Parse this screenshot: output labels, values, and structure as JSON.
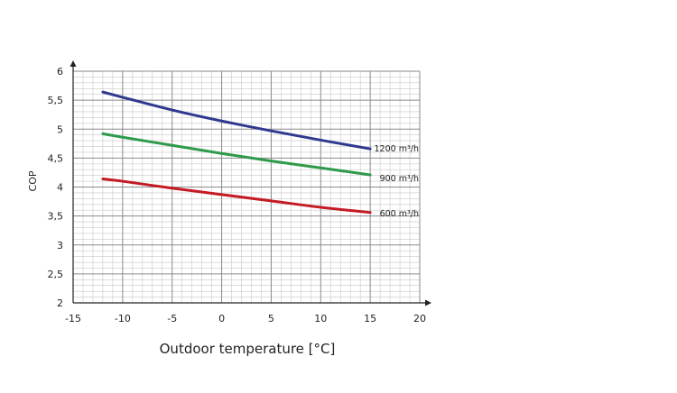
{
  "chart_data": {
    "type": "line",
    "xlabel": "Outdoor temperature [°C]",
    "ylabel": "COP",
    "xlim": [
      -15,
      20
    ],
    "ylim": [
      2,
      6
    ],
    "x_ticks": [
      "-15",
      "-10",
      "-5",
      "0",
      "5",
      "10",
      "15",
      "20"
    ],
    "y_ticks": [
      "2",
      "2,5",
      "3",
      "3,5",
      "4",
      "4,5",
      "5",
      "5,5",
      "6"
    ],
    "grid": true,
    "series": [
      {
        "name": "1200 m³/h",
        "color": "#2f3a8f",
        "x": [
          -12,
          -10,
          -5,
          0,
          5,
          10,
          15
        ],
        "y": [
          5.64,
          5.55,
          5.33,
          5.14,
          4.97,
          4.81,
          4.66
        ]
      },
      {
        "name": "900 m³/h",
        "color": "#2e9a4a",
        "x": [
          -12,
          -10,
          -5,
          0,
          5,
          10,
          15
        ],
        "y": [
          4.92,
          4.86,
          4.72,
          4.58,
          4.45,
          4.33,
          4.21
        ]
      },
      {
        "name": "600 m³/h",
        "color": "#c41a22",
        "x": [
          -12,
          -10,
          -5,
          0,
          5,
          10,
          15
        ],
        "y": [
          4.14,
          4.1,
          3.98,
          3.87,
          3.76,
          3.65,
          3.56
        ]
      }
    ]
  }
}
